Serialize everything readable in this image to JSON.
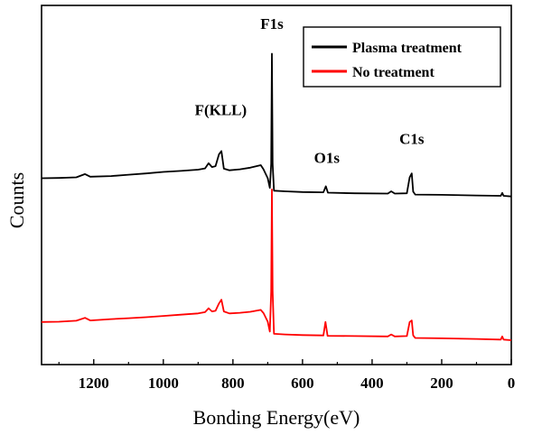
{
  "chart_data": {
    "type": "line",
    "title": "",
    "xlabel": "Bonding Energy(eV)",
    "ylabel": "Counts",
    "xlim": [
      1350,
      0
    ],
    "x_reversed": true,
    "xticks": [
      1200,
      1000,
      800,
      600,
      400,
      200,
      0
    ],
    "yticks_shown": false,
    "ylim": [
      0,
      100
    ],
    "grid": false,
    "legend_position": "top-right",
    "annotations": [
      {
        "text": "F1s",
        "x": 688,
        "y": 100
      },
      {
        "text": "F(KLL)",
        "x": 835,
        "y": 73
      },
      {
        "text": "O1s",
        "x": 530,
        "y": 58
      },
      {
        "text": "C1s",
        "x": 286,
        "y": 64
      }
    ],
    "series": [
      {
        "name": "Plasma treatment",
        "color": "#000000",
        "points": [
          [
            1350,
            55.5
          ],
          [
            1300,
            55.6
          ],
          [
            1250,
            55.8
          ],
          [
            1225,
            56.8
          ],
          [
            1210,
            56.0
          ],
          [
            1150,
            56.2
          ],
          [
            1100,
            56.6
          ],
          [
            1050,
            57.0
          ],
          [
            1000,
            57.5
          ],
          [
            950,
            57.8
          ],
          [
            900,
            58.2
          ],
          [
            880,
            58.6
          ],
          [
            870,
            60.2
          ],
          [
            860,
            59.0
          ],
          [
            850,
            59.3
          ],
          [
            840,
            63.0
          ],
          [
            833,
            64.0
          ],
          [
            826,
            58.5
          ],
          [
            810,
            58.0
          ],
          [
            780,
            58.3
          ],
          [
            750,
            58.8
          ],
          [
            720,
            59.6
          ],
          [
            712,
            58.3
          ],
          [
            700,
            55.5
          ],
          [
            694,
            52.5
          ],
          [
            690,
            60.0
          ],
          [
            688,
            94.5
          ],
          [
            686,
            60.0
          ],
          [
            682,
            51.6
          ],
          [
            650,
            51.4
          ],
          [
            600,
            51.2
          ],
          [
            540,
            51.1
          ],
          [
            533,
            53.0
          ],
          [
            527,
            51.0
          ],
          [
            450,
            50.8
          ],
          [
            355,
            50.7
          ],
          [
            345,
            51.4
          ],
          [
            335,
            50.7
          ],
          [
            300,
            50.8
          ],
          [
            292,
            55.8
          ],
          [
            286,
            57.0
          ],
          [
            282,
            51.3
          ],
          [
            276,
            50.4
          ],
          [
            200,
            50.3
          ],
          [
            100,
            50.1
          ],
          [
            30,
            50.0
          ],
          [
            26,
            50.9
          ],
          [
            22,
            50.0
          ],
          [
            0,
            49.8
          ]
        ]
      },
      {
        "name": "No treatment",
        "color": "#ff0000",
        "points": [
          [
            1350,
            10.5
          ],
          [
            1300,
            10.6
          ],
          [
            1250,
            10.9
          ],
          [
            1225,
            11.8
          ],
          [
            1210,
            11.0
          ],
          [
            1150,
            11.4
          ],
          [
            1100,
            11.7
          ],
          [
            1050,
            12.0
          ],
          [
            1000,
            12.4
          ],
          [
            950,
            12.8
          ],
          [
            900,
            13.2
          ],
          [
            880,
            13.6
          ],
          [
            870,
            14.8
          ],
          [
            860,
            13.8
          ],
          [
            850,
            14.0
          ],
          [
            840,
            16.3
          ],
          [
            833,
            17.5
          ],
          [
            826,
            13.8
          ],
          [
            810,
            13.2
          ],
          [
            780,
            13.4
          ],
          [
            750,
            13.7
          ],
          [
            720,
            14.3
          ],
          [
            712,
            13.3
          ],
          [
            700,
            10.6
          ],
          [
            694,
            7.5
          ],
          [
            690,
            20.0
          ],
          [
            688,
            52.0
          ],
          [
            686,
            20.0
          ],
          [
            682,
            6.8
          ],
          [
            650,
            6.6
          ],
          [
            600,
            6.4
          ],
          [
            540,
            6.3
          ],
          [
            534,
            10.5
          ],
          [
            528,
            6.2
          ],
          [
            450,
            6.1
          ],
          [
            355,
            6.0
          ],
          [
            345,
            6.6
          ],
          [
            335,
            6.0
          ],
          [
            300,
            6.1
          ],
          [
            292,
            10.5
          ],
          [
            286,
            11.0
          ],
          [
            282,
            6.3
          ],
          [
            276,
            5.5
          ],
          [
            200,
            5.4
          ],
          [
            100,
            5.2
          ],
          [
            30,
            5.0
          ],
          [
            26,
            6.0
          ],
          [
            22,
            5.0
          ],
          [
            0,
            4.8
          ]
        ]
      }
    ]
  }
}
